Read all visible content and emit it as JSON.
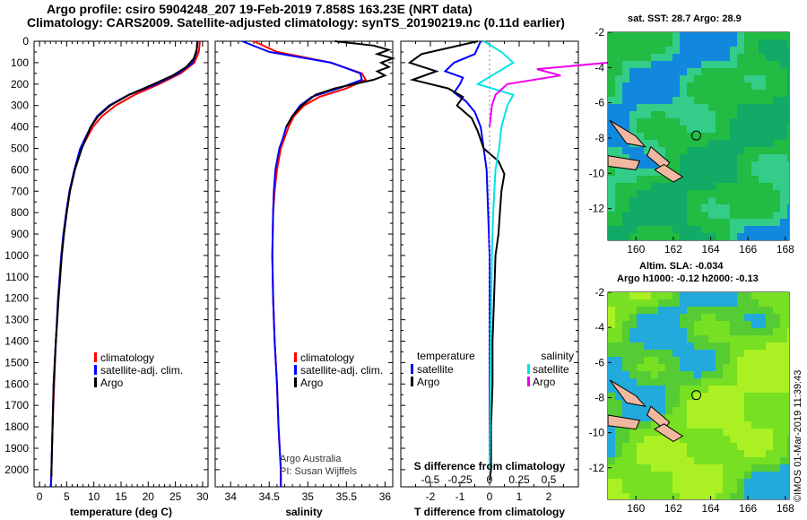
{
  "header": {
    "title_line1": "Argo profile: csiro 5904248_207 19-Feb-2019 7.858S 163.23E (NRT data)",
    "title_line2": "Climatology: CARS2009. Satellite-adjusted climatology: synTS_20190219.nc (0.11d earlier)"
  },
  "credit": {
    "line1": "Argo Australia",
    "line2": "PI: Susan Wijffels"
  },
  "watermark": "©IMOS 01-Mar-2019 11:39:43",
  "colors": {
    "climatology": "#ff0000",
    "satellite": "#0000ff",
    "argo": "#000000",
    "sat_salinity": "#00e5e5",
    "argo_salinity": "#ee00ee"
  },
  "chart_data": [
    {
      "type": "line",
      "id": "temperature",
      "xlabel": "temperature (deg C)",
      "ylabel": "",
      "xlim": [
        -1,
        31
      ],
      "ylim": [
        2080,
        0
      ],
      "xticks": [
        "0",
        "5",
        "10",
        "15",
        "20",
        "25",
        "30"
      ],
      "yticks": [
        "0",
        "100",
        "200",
        "300",
        "400",
        "500",
        "600",
        "700",
        "800",
        "900",
        "1000",
        "1100",
        "1200",
        "1300",
        "1400",
        "1500",
        "1600",
        "1700",
        "1800",
        "1900",
        "2000"
      ],
      "legend": [
        "climatology",
        "satellite-adj. clim.",
        "Argo"
      ],
      "series": [
        {
          "name": "climatology",
          "depth": [
            0,
            50,
            100,
            150,
            200,
            250,
            300,
            350,
            400,
            500,
            600,
            700,
            800,
            900,
            1000,
            1200,
            1400,
            1600,
            1800,
            2000,
            2080
          ],
          "values": [
            29.5,
            29.3,
            28.5,
            26.0,
            22.0,
            17.5,
            14.0,
            11.5,
            9.8,
            7.7,
            6.5,
            5.6,
            5.0,
            4.5,
            4.1,
            3.5,
            3.0,
            2.7,
            2.4,
            2.2,
            2.1
          ]
        },
        {
          "name": "satellite-adj. clim.",
          "depth": [
            0,
            50,
            100,
            150,
            200,
            250,
            300,
            350,
            400,
            500,
            600,
            700,
            800,
            900,
            1000,
            1200,
            1400,
            1600,
            1800,
            2000,
            2080
          ],
          "values": [
            29.0,
            28.9,
            28.2,
            25.6,
            21.5,
            16.4,
            12.8,
            10.6,
            9.4,
            7.5,
            6.4,
            5.5,
            4.9,
            4.4,
            4.0,
            3.4,
            3.0,
            2.6,
            2.4,
            2.2,
            2.1
          ]
        },
        {
          "name": "Argo",
          "depth": [
            0,
            40,
            80,
            120,
            160,
            200,
            250,
            300,
            350,
            400,
            450,
            500,
            600,
            700,
            800,
            900,
            1000,
            1200,
            1400,
            1600,
            1800,
            2000,
            2030
          ],
          "values": [
            29.1,
            28.9,
            28.4,
            27.0,
            24.5,
            21.0,
            16.5,
            13.0,
            10.8,
            9.4,
            8.6,
            7.8,
            6.5,
            5.6,
            5.0,
            4.5,
            4.1,
            3.5,
            3.0,
            2.6,
            2.4,
            2.2,
            2.2
          ]
        }
      ]
    },
    {
      "type": "line",
      "id": "salinity",
      "xlabel": "salinity",
      "xlim": [
        33.8,
        36.1
      ],
      "ylim": [
        2080,
        0
      ],
      "xticks": [
        "34",
        "34.5",
        "35",
        "35.5",
        "36"
      ],
      "legend": [
        "climatology",
        "satellite-adj. clim.",
        "Argo"
      ],
      "series": [
        {
          "name": "climatology",
          "depth": [
            0,
            50,
            100,
            150,
            180,
            220,
            260,
            300,
            350,
            400,
            450,
            500,
            600,
            700,
            800,
            1000,
            1200,
            1400,
            1600,
            1800,
            2000,
            2080
          ],
          "values": [
            34.3,
            34.6,
            35.3,
            35.7,
            35.75,
            35.5,
            35.15,
            34.95,
            34.82,
            34.75,
            34.7,
            34.65,
            34.6,
            34.57,
            34.55,
            34.54,
            34.55,
            34.57,
            34.6,
            34.62,
            34.65,
            34.65
          ]
        },
        {
          "name": "satellite-adj. clim.",
          "depth": [
            0,
            50,
            100,
            150,
            180,
            220,
            260,
            300,
            350,
            400,
            450,
            500,
            600,
            700,
            800,
            1000,
            1200,
            1400,
            1600,
            1800,
            2000,
            2080
          ],
          "values": [
            34.15,
            34.5,
            35.3,
            35.68,
            35.7,
            35.4,
            35.05,
            34.9,
            34.8,
            34.72,
            34.68,
            34.63,
            34.58,
            34.56,
            34.55,
            34.54,
            34.55,
            34.57,
            34.6,
            34.62,
            34.65,
            34.65
          ]
        },
        {
          "name": "Argo",
          "depth": [
            0,
            20,
            40,
            60,
            80,
            100,
            120,
            140,
            160,
            180,
            200,
            220,
            250,
            300,
            350,
            400
          ],
          "values": [
            35.35,
            35.85,
            36.05,
            35.9,
            36.1,
            35.95,
            36.05,
            35.9,
            36.0,
            35.85,
            35.6,
            35.35,
            35.1,
            34.92,
            34.8,
            34.72
          ]
        }
      ]
    },
    {
      "type": "line",
      "id": "difference",
      "xlabel": "T difference from climatology",
      "top_axis_label": "S difference from climatology",
      "xlim": [
        -3,
        3
      ],
      "ylim": [
        2080,
        0
      ],
      "xticks": [
        "-2",
        "-1",
        "0",
        "1",
        "2"
      ],
      "top_ticks": [
        "-0.5",
        "-0.25",
        "0",
        "0.25",
        "0.5"
      ],
      "legend_left": {
        "header": "temperature",
        "items": [
          "satellite",
          "Argo"
        ]
      },
      "legend_right": {
        "header": "salinity",
        "items": [
          "satellite",
          "Argo"
        ]
      },
      "series": [
        {
          "name": "T satellite",
          "depth": [
            0,
            60,
            100,
            140,
            170,
            200,
            240,
            280,
            330,
            400,
            500,
            600,
            800,
            1000,
            1400,
            2000
          ],
          "values": [
            -0.3,
            -0.5,
            -1.2,
            -1.5,
            -0.9,
            -1.0,
            -1.2,
            -0.8,
            -0.5,
            -0.3,
            -0.2,
            -0.1,
            -0.05,
            0,
            0,
            0
          ]
        },
        {
          "name": "T Argo",
          "depth": [
            0,
            60,
            100,
            140,
            180,
            220,
            260,
            300,
            360,
            420,
            500,
            560,
            620,
            700,
            800,
            900,
            1000,
            1200,
            1400,
            1600,
            1800,
            2000,
            2050
          ],
          "values": [
            -0.4,
            -2.3,
            -2.7,
            -1.8,
            -2.6,
            -1.4,
            -0.9,
            -1.1,
            -0.6,
            -0.4,
            -0.2,
            0.3,
            0.5,
            0.4,
            0.35,
            0.3,
            0.2,
            0.15,
            0.1,
            0.1,
            0.05,
            0.05,
            0
          ]
        },
        {
          "name": "S satellite",
          "depth": [
            0,
            50,
            100,
            150,
            200,
            250,
            300,
            400,
            500,
            600,
            800,
            1000,
            1400,
            2000
          ],
          "values": [
            -0.05,
            0.1,
            0.2,
            0.05,
            -0.1,
            0.2,
            0.15,
            0.1,
            0.08,
            0.05,
            0.03,
            0.02,
            0.01,
            0
          ]
        },
        {
          "name": "S Argo",
          "depth": [
            0,
            20,
            40,
            60,
            80,
            100,
            130,
            160,
            200,
            250,
            300,
            400
          ],
          "values": [
            1.0,
            1.2,
            1.9,
            1.4,
            1.5,
            1.0,
            0.4,
            0.6,
            0.15,
            0.05,
            0.02,
            0.0
          ]
        }
      ]
    },
    {
      "type": "heatmap",
      "id": "sst_map",
      "title": "sat. SST: 28.7 Argo: 28.9",
      "xlim": [
        158.5,
        168.2
      ],
      "ylim": [
        -13.8,
        -2
      ],
      "xticks": [
        "160",
        "162",
        "164",
        "166",
        "168"
      ],
      "yticks": [
        "-2",
        "-4",
        "-6",
        "-8",
        "-10",
        "-12"
      ],
      "argo_position": {
        "lon": 163.23,
        "lat": -7.858
      }
    },
    {
      "type": "heatmap",
      "id": "sla_map",
      "title_line1": "Altim. SLA: -0.034",
      "title_line2": "Argo h1000: -0.12 h2000: -0.13",
      "xlim": [
        158.5,
        168.2
      ],
      "ylim": [
        -13.8,
        -2
      ],
      "xticks": [
        "160",
        "162",
        "164",
        "166",
        "168"
      ],
      "yticks": [
        "-2",
        "-4",
        "-6",
        "-8",
        "-10",
        "-12"
      ],
      "argo_position": {
        "lon": 163.23,
        "lat": -7.858
      }
    }
  ]
}
